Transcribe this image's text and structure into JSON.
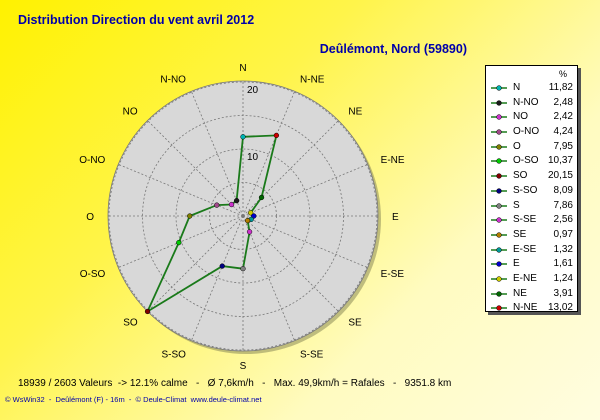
{
  "title": "Distribution Direction du vent   avril 2012",
  "location": "Deûlémont, Nord (59890)",
  "legend_unit": "%",
  "stats": "18939 / 2603 Valeurs  -> 12.1% calme   -   Ø 7,6km/h   -   Max. 49,9km/h = Rafales   -   9351.8 km",
  "footer": "© WsWin32  -  Deûlémont (F) - 16m  -  © Deule-Climat  www.deule-climat.net",
  "chart_data": {
    "type": "radar",
    "title": "Distribution Direction du vent   avril 2012",
    "unit": "%",
    "rmax": 20,
    "ring_labels": [
      "10",
      "20"
    ],
    "directions": [
      "N",
      "N-NE",
      "NE",
      "E-NE",
      "E",
      "E-SE",
      "SE",
      "S-SE",
      "S",
      "S-SO",
      "SO",
      "O-SO",
      "O",
      "O-NO",
      "NO",
      "N-NO"
    ],
    "legend": [
      {
        "label": "N",
        "value": 11.82,
        "color": "#00b3b3"
      },
      {
        "label": "N-NO",
        "value": 2.48,
        "color": "#1a1a1a"
      },
      {
        "label": "NO",
        "value": 2.42,
        "color": "#cc33cc"
      },
      {
        "label": "O-NO",
        "value": 4.24,
        "color": "#a04a8a"
      },
      {
        "label": "O",
        "value": 7.95,
        "color": "#808000"
      },
      {
        "label": "O-SO",
        "value": 10.37,
        "color": "#00cc00"
      },
      {
        "label": "SO",
        "value": 20.15,
        "color": "#800000"
      },
      {
        "label": "S-SO",
        "value": 8.09,
        "color": "#000080"
      },
      {
        "label": "S",
        "value": 7.86,
        "color": "#808080"
      },
      {
        "label": "S-SE",
        "value": 2.56,
        "color": "#cc33cc"
      },
      {
        "label": "SE",
        "value": 0.97,
        "color": "#b37d00"
      },
      {
        "label": "E-SE",
        "value": 1.32,
        "color": "#009999"
      },
      {
        "label": "E",
        "value": 1.61,
        "color": "#0000cc"
      },
      {
        "label": "E-NE",
        "value": 1.24,
        "color": "#cccc00"
      },
      {
        "label": "NE",
        "value": 3.91,
        "color": "#006600"
      },
      {
        "label": "N-NE",
        "value": 13.02,
        "color": "#cc0000"
      }
    ]
  }
}
